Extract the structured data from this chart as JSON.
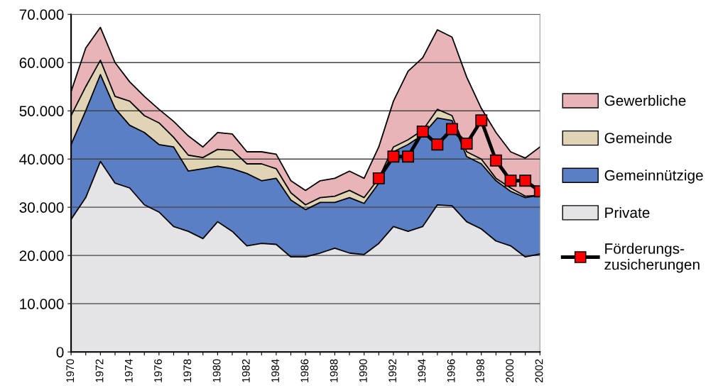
{
  "chart_data": {
    "type": "area",
    "stacked": true,
    "x": [
      1970,
      1971,
      1972,
      1973,
      1974,
      1975,
      1976,
      1977,
      1978,
      1979,
      1980,
      1981,
      1982,
      1983,
      1984,
      1985,
      1986,
      1987,
      1988,
      1989,
      1990,
      1991,
      1992,
      1993,
      1994,
      1995,
      1996,
      1997,
      1998,
      1999,
      2000,
      2001,
      2002
    ],
    "series": [
      {
        "name": "Private",
        "color": "#e4e4e6",
        "values": [
          27500,
          32000,
          39500,
          35000,
          34000,
          30500,
          29000,
          26000,
          25000,
          23500,
          27000,
          25000,
          22000,
          22500,
          22300,
          19700,
          19700,
          20500,
          21500,
          20500,
          20200,
          22500,
          26000,
          25000,
          26000,
          30500,
          30300,
          27000,
          25500,
          23000,
          22000,
          19700,
          20300
        ]
      },
      {
        "name": "Gemeinnützige",
        "color": "#5b7fc4",
        "values": [
          15500,
          18000,
          18000,
          15500,
          13000,
          15000,
          14000,
          16500,
          12500,
          14500,
          11500,
          13000,
          15000,
          13000,
          13700,
          11800,
          9800,
          10500,
          9500,
          11500,
          10600,
          12500,
          15500,
          18000,
          19000,
          18000,
          17700,
          13500,
          13500,
          12500,
          11300,
          12300,
          12200
        ]
      },
      {
        "name": "Gemeinde",
        "color": "#e0d4b4",
        "values": [
          6000,
          5000,
          3000,
          2500,
          5000,
          3500,
          4500,
          2000,
          3300,
          2300,
          3500,
          3800,
          2000,
          3500,
          2000,
          1500,
          1000,
          1000,
          1300,
          1500,
          1200,
          1000,
          1000,
          1000,
          1000,
          1800,
          1000,
          1000,
          1000,
          500,
          700,
          300,
          0
        ]
      },
      {
        "name": "Gewerbliche",
        "color": "#e8b4b8",
        "values": [
          5000,
          8000,
          6800,
          7000,
          4000,
          4000,
          2800,
          3300,
          4000,
          2200,
          3500,
          3400,
          2500,
          2500,
          3000,
          2500,
          3000,
          3500,
          3700,
          4000,
          4000,
          6500,
          9500,
          14200,
          15000,
          16500,
          16300,
          15500,
          10500,
          9500,
          7500,
          7900,
          10000
        ]
      },
      {
        "name": "Förderungs-\nzusicherungen",
        "type": "line",
        "color": "#ff0000",
        "marker": "square",
        "line_style": "solid",
        "x": [
          1991,
          1992,
          1993,
          1994,
          1995,
          1996,
          1997,
          1998,
          1999,
          2000,
          2001,
          2002
        ],
        "values": [
          36000,
          40500,
          40500,
          45700,
          43000,
          46200,
          43200,
          48000,
          39700,
          35500,
          35500,
          33300
        ]
      }
    ],
    "xlim": [
      1970,
      2002
    ],
    "xticks": [
      1970,
      {
        "value": 1971,
        "label": null
      },
      1972,
      {
        "value": 1973,
        "label": null
      },
      1974,
      {
        "value": 1975,
        "label": null
      },
      1976,
      {
        "value": 1977,
        "label": null
      },
      1978,
      {
        "value": 1979,
        "label": null
      },
      1980,
      {
        "value": 1981,
        "label": null
      },
      1982,
      {
        "value": 1983,
        "label": null
      },
      1984,
      {
        "value": 1985,
        "label": null
      },
      1986,
      {
        "value": 1987,
        "label": null
      },
      1988,
      {
        "value": 1989,
        "label": null
      },
      1990,
      {
        "value": 1991,
        "label": null
      },
      1992,
      {
        "value": 1993,
        "label": null
      },
      1994,
      {
        "value": 1995,
        "label": null
      },
      1996,
      {
        "value": 1997,
        "label": null
      },
      1998,
      {
        "value": 1999,
        "label": null
      },
      2000,
      {
        "value": 2001,
        "label": null
      },
      2002
    ],
    "ylim": [
      0,
      70000
    ],
    "yticks": [
      {
        "value": 0,
        "label": "0"
      },
      {
        "value": 10000,
        "label": "10.000"
      },
      {
        "value": 20000,
        "label": "20.000"
      },
      {
        "value": 30000,
        "label": "30.000"
      },
      {
        "value": 40000,
        "label": "40.000"
      },
      {
        "value": 50000,
        "label": "50.000"
      },
      {
        "value": 60000,
        "label": "60.000"
      },
      {
        "value": 70000,
        "label": "70.000"
      }
    ],
    "grid": "y",
    "legend": "right"
  }
}
